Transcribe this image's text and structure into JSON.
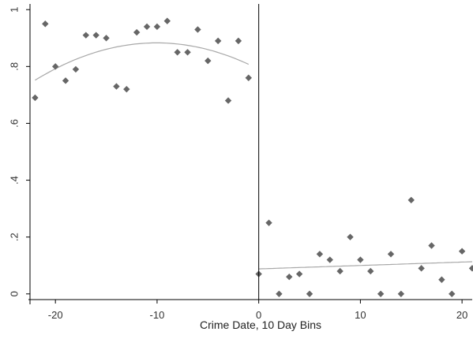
{
  "chart_data": {
    "type": "scatter",
    "xlabel": "Crime Date, 10 Day Bins",
    "ylabel": "",
    "xlim": [
      -22.5,
      21
    ],
    "ylim": [
      -0.02,
      1.02
    ],
    "x_ticks": [
      -20,
      -10,
      0,
      10,
      20
    ],
    "x_tick_labels": [
      "-20",
      "-10",
      "0",
      "10",
      "20"
    ],
    "y_ticks": [
      0,
      0.2,
      0.4,
      0.6,
      0.8,
      1
    ],
    "y_tick_labels": [
      "0",
      ".2",
      ".4",
      ".6",
      ".8",
      "1"
    ],
    "grid": false,
    "cutoff_x": 0,
    "series": [
      {
        "x": [
          -22,
          -21,
          -20,
          -19,
          -18,
          -17,
          -16,
          -15,
          -14,
          -13,
          -12,
          -11,
          -10,
          -9,
          -8,
          -7,
          -6,
          -5,
          -4,
          -3,
          -2,
          -1,
          0,
          1,
          2,
          3,
          4,
          5,
          6,
          7,
          8,
          9,
          10,
          11,
          12,
          13,
          14,
          15,
          16,
          17,
          18,
          19,
          20,
          21
        ],
        "y": [
          0.69,
          0.95,
          0.8,
          0.75,
          0.79,
          0.91,
          0.91,
          0.9,
          0.73,
          0.72,
          0.92,
          0.94,
          0.94,
          0.96,
          0.85,
          0.85,
          0.93,
          0.82,
          0.89,
          0.68,
          0.89,
          0.76,
          0.07,
          0.25,
          0.0,
          0.06,
          0.07,
          0.0,
          0.14,
          0.12,
          0.08,
          0.2,
          0.12,
          0.08,
          0.0,
          0.14,
          0.0,
          0.33,
          0.09,
          0.17,
          0.05,
          0.0,
          0.15,
          0.09
        ]
      }
    ],
    "fit_lines": [
      {
        "x_range": [
          -22,
          -1
        ],
        "coef": [
          0.79,
          -0.0185,
          -0.00092
        ]
      },
      {
        "x_range": [
          0,
          21
        ],
        "coef": [
          0.088,
          0.0012,
          0.0
        ]
      }
    ],
    "colors": {
      "points": "#666666",
      "fit": "#a8a8a8",
      "axis": "#000000",
      "background": "#ffffff"
    }
  }
}
